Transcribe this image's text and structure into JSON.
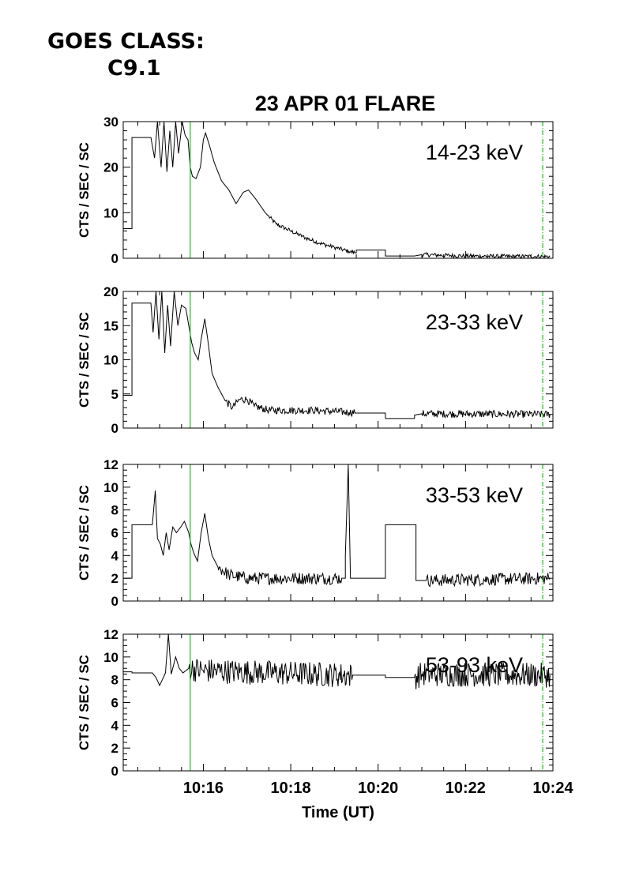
{
  "header": {
    "goes_label": "GOES CLASS:",
    "goes_value": "C9.1"
  },
  "chart_data": {
    "type": "line",
    "title": "23 APR 01 FLARE",
    "xlabel": "Time (UT)",
    "ylabel": "CTS / SEC / SC",
    "xlim": [
      "10:14:10",
      "10:24:00"
    ],
    "x_ticks": [
      "10:16",
      "10:18",
      "10:20",
      "10:22",
      "10:24"
    ],
    "vertical_markers": [
      {
        "time": "10:15:42",
        "style": "solid",
        "color": "#22bb22"
      },
      {
        "time": "10:23:46",
        "style": "dash-dot",
        "color": "#22bb22"
      }
    ],
    "colors": {
      "line": "#000000",
      "marker": "#22bb22"
    },
    "panels": [
      {
        "label": "14-23 keV",
        "ylim": [
          0,
          30
        ],
        "yticks": [
          0,
          10,
          20,
          30
        ],
        "points": [
          [
            "10:14:10",
            6.5
          ],
          [
            "10:14:22",
            6.5
          ],
          [
            "10:14:22",
            26.5
          ],
          [
            "10:14:48",
            26.5
          ],
          [
            "10:14:53",
            22
          ],
          [
            "10:14:57",
            30
          ],
          [
            "10:15:02",
            20
          ],
          [
            "10:15:06",
            30
          ],
          [
            "10:15:10",
            19
          ],
          [
            "10:15:14",
            28
          ],
          [
            "10:15:18",
            20
          ],
          [
            "10:15:22",
            30
          ],
          [
            "10:15:26",
            23
          ],
          [
            "10:15:31",
            30
          ],
          [
            "10:15:35",
            27
          ],
          [
            "10:15:39",
            26
          ],
          [
            "10:15:42",
            20
          ],
          [
            "10:15:45",
            18
          ],
          [
            "10:15:50",
            17.5
          ],
          [
            "10:15:56",
            20
          ],
          [
            "10:16:00",
            26
          ],
          [
            "10:16:03",
            27.5
          ],
          [
            "10:16:08",
            25
          ],
          [
            "10:16:15",
            21
          ],
          [
            "10:16:25",
            17
          ],
          [
            "10:16:35",
            15
          ],
          [
            "10:16:45",
            12
          ],
          [
            "10:16:55",
            14.5
          ],
          [
            "10:17:02",
            15
          ],
          [
            "10:17:12",
            13
          ],
          [
            "10:17:25",
            10
          ],
          [
            "10:17:40",
            7.5
          ],
          [
            "10:18:00",
            6
          ],
          [
            "10:18:20",
            4.5
          ],
          [
            "10:18:40",
            3.3
          ],
          [
            "10:19:00",
            2.4
          ],
          [
            "10:19:20",
            1.5
          ],
          [
            "10:19:30",
            1.2
          ],
          [
            "10:19:30",
            1.8
          ],
          [
            "10:20:10",
            1.8
          ],
          [
            "10:20:10",
            0.5
          ],
          [
            "10:20:50",
            0.5
          ],
          [
            "10:21:00",
            0.8
          ],
          [
            "10:22:00",
            0.5
          ],
          [
            "10:23:00",
            0.4
          ],
          [
            "10:23:56",
            0.4
          ]
        ],
        "noise_from": "10:17:30",
        "noise_to": "10:23:56",
        "noise_amp": 0.45,
        "noise_skip": [
          [
            "10:19:30",
            "10:21:00"
          ]
        ]
      },
      {
        "label": "23-33 keV",
        "ylim": [
          0,
          20
        ],
        "yticks": [
          0,
          5,
          10,
          15,
          20
        ],
        "points": [
          [
            "10:14:10",
            4.8
          ],
          [
            "10:14:22",
            4.8
          ],
          [
            "10:14:22",
            18.3
          ],
          [
            "10:14:48",
            18.3
          ],
          [
            "10:14:51",
            14
          ],
          [
            "10:14:55",
            20
          ],
          [
            "10:14:59",
            13
          ],
          [
            "10:15:03",
            20
          ],
          [
            "10:15:07",
            11
          ],
          [
            "10:15:11",
            18
          ],
          [
            "10:15:15",
            12
          ],
          [
            "10:15:20",
            20
          ],
          [
            "10:15:25",
            15
          ],
          [
            "10:15:30",
            18
          ],
          [
            "10:15:36",
            17.5
          ],
          [
            "10:15:40",
            15
          ],
          [
            "10:15:44",
            12.5
          ],
          [
            "10:15:48",
            11
          ],
          [
            "10:15:53",
            10
          ],
          [
            "10:15:57",
            13
          ],
          [
            "10:16:02",
            16
          ],
          [
            "10:16:06",
            13
          ],
          [
            "10:16:12",
            8
          ],
          [
            "10:16:20",
            6
          ],
          [
            "10:16:30",
            4
          ],
          [
            "10:16:40",
            3
          ],
          [
            "10:16:50",
            4.2
          ],
          [
            "10:17:00",
            4.2
          ],
          [
            "10:17:10",
            3.2
          ],
          [
            "10:17:30",
            2.6
          ],
          [
            "10:18:30",
            2.6
          ],
          [
            "10:19:20",
            2.3
          ],
          [
            "10:19:28",
            2.3
          ],
          [
            "10:19:28",
            2.2
          ],
          [
            "10:20:10",
            2.2
          ],
          [
            "10:20:10",
            1.4
          ],
          [
            "10:20:50",
            1.4
          ],
          [
            "10:20:50",
            1.9
          ],
          [
            "10:21:00",
            2.1
          ],
          [
            "10:23:56",
            2.0
          ]
        ],
        "noise_from": "10:16:30",
        "noise_to": "10:23:56",
        "noise_amp": 0.55,
        "noise_skip": [
          [
            "10:19:28",
            "10:21:00"
          ]
        ]
      },
      {
        "label": "33-53 keV",
        "ylim": [
          0,
          12
        ],
        "yticks": [
          0,
          2,
          4,
          6,
          8,
          10,
          12
        ],
        "points": [
          [
            "10:14:10",
            2
          ],
          [
            "10:14:22",
            2
          ],
          [
            "10:14:22",
            6.7
          ],
          [
            "10:14:50",
            6.7
          ],
          [
            "10:14:54",
            9.7
          ],
          [
            "10:14:57",
            5.5
          ],
          [
            "10:15:01",
            5
          ],
          [
            "10:15:05",
            4
          ],
          [
            "10:15:09",
            6
          ],
          [
            "10:15:13",
            4.5
          ],
          [
            "10:15:18",
            6.5
          ],
          [
            "10:15:23",
            6
          ],
          [
            "10:15:29",
            6.5
          ],
          [
            "10:15:34",
            7
          ],
          [
            "10:15:40",
            6
          ],
          [
            "10:15:43",
            5
          ],
          [
            "10:15:47",
            4.2
          ],
          [
            "10:15:52",
            3.5
          ],
          [
            "10:15:57",
            6
          ],
          [
            "10:16:02",
            7.7
          ],
          [
            "10:16:07",
            5.5
          ],
          [
            "10:16:12",
            4
          ],
          [
            "10:16:20",
            3
          ],
          [
            "10:16:35",
            2.3
          ],
          [
            "10:17:00",
            2
          ],
          [
            "10:19:15",
            2
          ],
          [
            "10:19:15",
            4
          ],
          [
            "10:19:19",
            12
          ],
          [
            "10:19:22",
            2
          ],
          [
            "10:20:10",
            2
          ],
          [
            "10:20:10",
            6.7
          ],
          [
            "10:20:52",
            6.7
          ],
          [
            "10:20:52",
            1.8
          ],
          [
            "10:21:06",
            1.8
          ],
          [
            "10:23:56",
            2
          ]
        ],
        "noise_from": "10:16:20",
        "noise_to": "10:23:56",
        "noise_amp": 0.55,
        "noise_skip": [
          [
            "10:19:10",
            "10:21:06"
          ]
        ]
      },
      {
        "label": "53-93 keV",
        "ylim": [
          0,
          12
        ],
        "yticks": [
          0,
          2,
          4,
          6,
          8,
          10,
          12
        ],
        "points": [
          [
            "10:14:10",
            8.7
          ],
          [
            "10:14:22",
            8.7
          ],
          [
            "10:14:22",
            8.6
          ],
          [
            "10:14:50",
            8.6
          ],
          [
            "10:14:55",
            8.2
          ],
          [
            "10:15:00",
            7.5
          ],
          [
            "10:15:08",
            8.6
          ],
          [
            "10:15:12",
            12
          ],
          [
            "10:15:16",
            8.5
          ],
          [
            "10:15:22",
            10
          ],
          [
            "10:15:27",
            9
          ],
          [
            "10:15:32",
            8.6
          ],
          [
            "10:15:40",
            9
          ],
          [
            "10:16:00",
            8.8
          ],
          [
            "10:19:20",
            8.4
          ],
          [
            "10:19:25",
            8.4
          ],
          [
            "10:20:10",
            8.4
          ],
          [
            "10:20:10",
            8.2
          ],
          [
            "10:20:50",
            8.2
          ],
          [
            "10:21:00",
            8.5
          ],
          [
            "10:23:56",
            8.4
          ]
        ],
        "noise_from": "10:15:40",
        "noise_to": "10:23:56",
        "noise_amp": 1.1,
        "noise_skip": [
          [
            "10:19:25",
            "10:20:50"
          ]
        ]
      }
    ]
  }
}
